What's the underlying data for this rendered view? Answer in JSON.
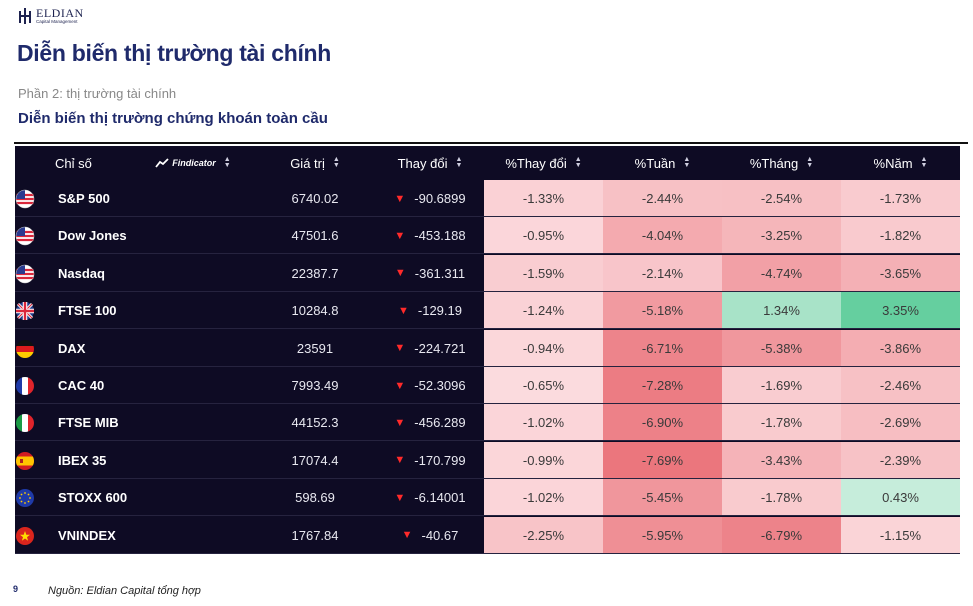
{
  "logo": {
    "name": "ELDIAN",
    "sub": "Capital Management"
  },
  "title": "Diễn biến thị trường tài chính",
  "subtitle": "Phần 2: thị trường tài chính",
  "section_title": "Diễn biến thị trường chứng khoán toàn cầu",
  "table": {
    "headers": {
      "name": "Chỉ số",
      "brand": "Findicator",
      "value": "Giá trị",
      "change": "Thay đổi",
      "pct_change": "%Thay đổi",
      "week": "%Tuần",
      "month": "%Tháng",
      "year": "%Năm"
    },
    "rows": [
      {
        "flag": "us",
        "name": "S&P 500",
        "value": "6740.02",
        "change": "-90.6899",
        "pct": "-1.33%",
        "week": "-2.44%",
        "month": "-2.54%",
        "year": "-1.73%"
      },
      {
        "flag": "us",
        "name": "Dow Jones",
        "value": "47501.6",
        "change": "-453.188",
        "pct": "-0.95%",
        "week": "-4.04%",
        "month": "-3.25%",
        "year": "-1.82%"
      },
      {
        "flag": "us",
        "name": "Nasdaq",
        "value": "22387.7",
        "change": "-361.311",
        "pct": "-1.59%",
        "week": "-2.14%",
        "month": "-4.74%",
        "year": "-3.65%"
      },
      {
        "flag": "uk",
        "name": "FTSE 100",
        "value": "10284.8",
        "change": "-129.19",
        "pct": "-1.24%",
        "week": "-5.18%",
        "month": "1.34%",
        "year": "3.35%"
      },
      {
        "flag": "de",
        "name": "DAX",
        "value": "23591",
        "change": "-224.721",
        "pct": "-0.94%",
        "week": "-6.71%",
        "month": "-5.38%",
        "year": "-3.86%"
      },
      {
        "flag": "fr",
        "name": "CAC 40",
        "value": "7993.49",
        "change": "-52.3096",
        "pct": "-0.65%",
        "week": "-7.28%",
        "month": "-1.69%",
        "year": "-2.46%"
      },
      {
        "flag": "it",
        "name": "FTSE MIB",
        "value": "44152.3",
        "change": "-456.289",
        "pct": "-1.02%",
        "week": "-6.90%",
        "month": "-1.78%",
        "year": "-2.69%"
      },
      {
        "flag": "es",
        "name": "IBEX 35",
        "value": "17074.4",
        "change": "-170.799",
        "pct": "-0.99%",
        "week": "-7.69%",
        "month": "-3.43%",
        "year": "-2.39%"
      },
      {
        "flag": "eu",
        "name": "STOXX 600",
        "value": "598.69",
        "change": "-6.14001",
        "pct": "-1.02%",
        "week": "-5.45%",
        "month": "-1.78%",
        "year": "0.43%"
      },
      {
        "flag": "vn",
        "name": "VNINDEX",
        "value": "1767.84",
        "change": "-40.67",
        "pct": "-2.25%",
        "week": "-5.95%",
        "month": "-6.79%",
        "year": "-1.15%"
      }
    ],
    "colors": {
      "background": "#0e0b24",
      "negative_arrow": "#ff2a2a"
    }
  },
  "footer": {
    "page": "9",
    "source": "Nguồn: Eldian Capital tổng hợp"
  }
}
